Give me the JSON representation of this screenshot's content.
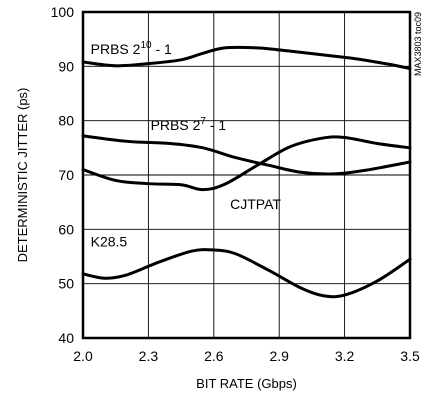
{
  "chart_data": {
    "type": "line",
    "xlabel": "BIT RATE (Gbps)",
    "ylabel": "DETERMINISTIC JITTER (ps)",
    "xlim": [
      2.0,
      3.5
    ],
    "ylim": [
      40,
      100
    ],
    "xticks": [
      "2.0",
      "2.3",
      "2.6",
      "2.9",
      "3.2",
      "3.5"
    ],
    "yticks": [
      "40",
      "50",
      "60",
      "70",
      "80",
      "90",
      "100"
    ],
    "grid": true,
    "code": "MAX3803 toc09",
    "series": [
      {
        "name": "PRBS 2^10 - 1",
        "label_parts": [
          "PRBS 2",
          "10",
          " - 1"
        ],
        "x": [
          2.0,
          2.15,
          2.3,
          2.45,
          2.55,
          2.65,
          2.8,
          2.95,
          3.1,
          3.25,
          3.4,
          3.5
        ],
        "y": [
          90.8,
          90.1,
          90.5,
          91.2,
          92.4,
          93.4,
          93.4,
          92.8,
          92.1,
          91.4,
          90.4,
          89.6
        ]
      },
      {
        "name": "PRBS 2^7 - 1",
        "label_parts": [
          "PRBS 2",
          "7",
          " - 1"
        ],
        "x": [
          2.0,
          2.2,
          2.4,
          2.55,
          2.7,
          2.85,
          3.0,
          3.15,
          3.3,
          3.5
        ],
        "y": [
          77.2,
          76.2,
          75.8,
          75.0,
          73.2,
          71.8,
          70.5,
          70.2,
          70.9,
          72.4
        ]
      },
      {
        "name": "CJTPAT",
        "label_parts": [
          "CJTPAT"
        ],
        "x": [
          2.0,
          2.15,
          2.3,
          2.45,
          2.55,
          2.65,
          2.8,
          2.95,
          3.1,
          3.2,
          3.35,
          3.5
        ],
        "y": [
          71.0,
          69.0,
          68.4,
          68.2,
          67.3,
          68.3,
          71.8,
          75.2,
          76.8,
          76.9,
          75.8,
          75.0
        ]
      },
      {
        "name": "K28.5",
        "label_parts": [
          "K28.5"
        ],
        "x": [
          2.0,
          2.1,
          2.2,
          2.35,
          2.5,
          2.6,
          2.7,
          2.85,
          3.0,
          3.1,
          3.2,
          3.35,
          3.5
        ],
        "y": [
          51.8,
          51.0,
          51.6,
          54.0,
          56.0,
          56.2,
          55.5,
          52.5,
          49.2,
          47.8,
          47.9,
          50.5,
          54.5
        ]
      }
    ]
  }
}
